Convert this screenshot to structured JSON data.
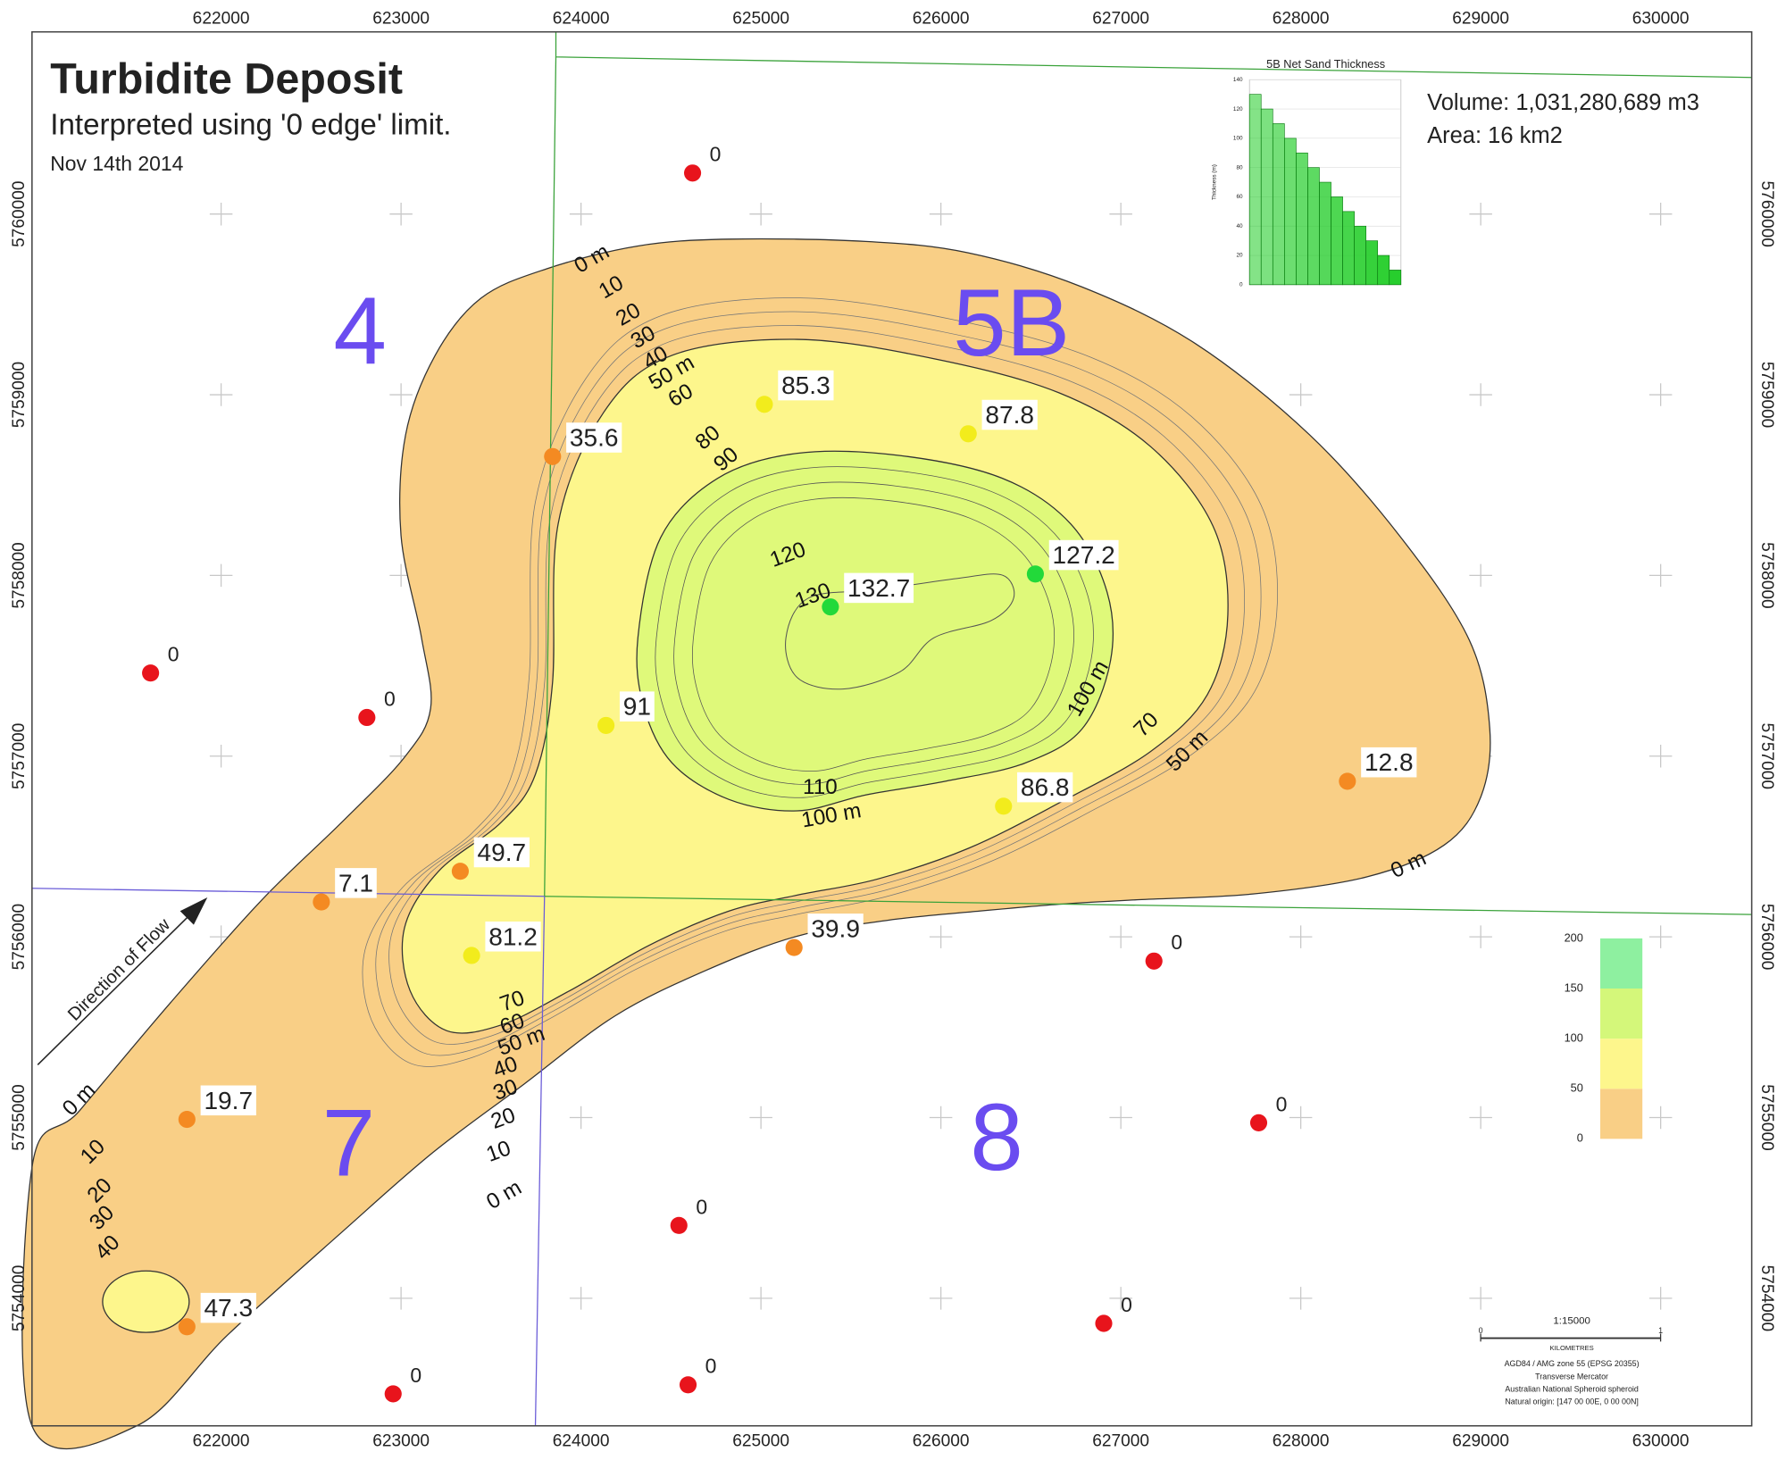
{
  "header": {
    "title": "Turbidite Deposit",
    "subtitle": "Interpreted using '0 edge' limit.",
    "date": "Nov 14th 2014",
    "volume": "Volume: 1,031,280,689 m3",
    "area": "Area: 16 km2"
  },
  "map": {
    "xlim": [
      620949,
      630506
    ],
    "ylim": [
      5753294,
      5761008
    ],
    "xticks": [
      622000,
      623000,
      624000,
      625000,
      626000,
      627000,
      628000,
      629000,
      630000
    ],
    "yticks": [
      5754000,
      5755000,
      5756000,
      5757000,
      5758000,
      5759000,
      5760000
    ],
    "wells": [
      {
        "x": 624620,
        "y": 5760227,
        "value": 0
      },
      {
        "x": 621608,
        "y": 5757460,
        "value": 0
      },
      {
        "x": 622810,
        "y": 5757214,
        "value": 0
      },
      {
        "x": 623842,
        "y": 5758658,
        "value": 35.6
      },
      {
        "x": 625019,
        "y": 5758947,
        "value": 85.3
      },
      {
        "x": 626152,
        "y": 5758784,
        "value": 87.8
      },
      {
        "x": 626525,
        "y": 5758008,
        "value": 127.2
      },
      {
        "x": 625386,
        "y": 5757826,
        "value": 132.7
      },
      {
        "x": 624139,
        "y": 5757170,
        "value": 91
      },
      {
        "x": 626348,
        "y": 5756723,
        "value": 86.8
      },
      {
        "x": 628259,
        "y": 5756861,
        "value": 12.8
      },
      {
        "x": 623329,
        "y": 5756363,
        "value": 49.7
      },
      {
        "x": 622557,
        "y": 5756193,
        "value": 7.1
      },
      {
        "x": 623392,
        "y": 5755897,
        "value": 81.2
      },
      {
        "x": 625184,
        "y": 5755941,
        "value": 39.9
      },
      {
        "x": 627184,
        "y": 5755866,
        "value": 0
      },
      {
        "x": 627766,
        "y": 5754971,
        "value": 0
      },
      {
        "x": 621810,
        "y": 5754990,
        "value": 19.7
      },
      {
        "x": 624544,
        "y": 5754403,
        "value": 0
      },
      {
        "x": 621810,
        "y": 5753842,
        "value": 47.3
      },
      {
        "x": 626905,
        "y": 5753861,
        "value": 0
      },
      {
        "x": 622956,
        "y": 5753471,
        "value": 0
      },
      {
        "x": 624595,
        "y": 5753521,
        "value": 0
      }
    ],
    "contour_labels": [
      "0 m",
      "10",
      "20",
      "30",
      "40",
      "50 m",
      "60",
      "80",
      "90",
      "120",
      "130",
      "100 m",
      "70",
      "50 m",
      "0 m",
      "110",
      "100 m",
      "70",
      "60",
      "50 m",
      "40",
      "30",
      "20",
      "10",
      "0 m",
      "0 m",
      "10",
      "20",
      "30",
      "40"
    ],
    "block_labels": [
      "4",
      "5B",
      "7",
      "8"
    ],
    "annotation": "Direction of Flow"
  },
  "inset_chart": {
    "type": "bar",
    "title": "5B Net Sand Thickness",
    "y_label": "Thickness (m)",
    "values": [
      130,
      120,
      110,
      100,
      90,
      80,
      70,
      60,
      50,
      40,
      30,
      20,
      10
    ],
    "color": "#1fcc25",
    "ylim": [
      0,
      140
    ],
    "yticks": [
      0,
      20,
      40,
      60,
      80,
      100,
      120,
      140
    ]
  },
  "legend": {
    "ylim": [
      0,
      200
    ],
    "ticks": [
      0,
      50,
      100,
      150,
      200
    ],
    "colors": [
      "#f9cf86",
      "#fdf68c",
      "#d4f77a",
      "#8ef0a0"
    ]
  },
  "well_colors": {
    "zero": "#e8141c",
    "bands": [
      "#f48a22",
      "#f2ec1c",
      "#22d93a",
      "#22d93a"
    ]
  },
  "scale": {
    "ratio": "1:15000",
    "start": "0",
    "end": "1",
    "unit": "KILOMETRES",
    "notes": [
      "AGD84 / AMG zone 55 (EPSG 20355)",
      "Transverse Mercator",
      "Australian National Spheroid spheroid",
      "Natural origin: [147 00 00E, 0 00 00N]"
    ]
  }
}
